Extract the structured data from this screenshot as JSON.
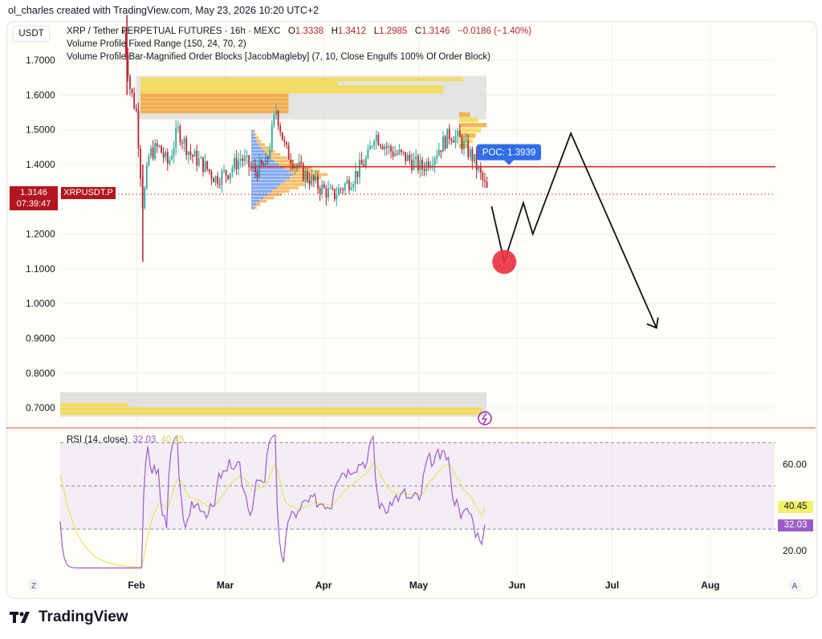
{
  "header": {
    "created_by": "ol_charles created with TradingView.com, May 23, 2026 10:20 UTC+2"
  },
  "unit": "USDT",
  "legend": {
    "symbol_line": "XRP / Tether PERPETUAL FUTURES · 16h · MEXC",
    "o_label": "O",
    "o_value": "1.3338",
    "h_label": "H",
    "h_value": "1.3412",
    "l_label": "L",
    "l_value": "1.2985",
    "c_label": "C",
    "c_value": "1.3146",
    "change": "−0.0186 (−1.40%)",
    "indicator1": "Volume Profile Fixed Range (150, 24, 70, 2)",
    "indicator2": "Volume Profile Bar-Magnified Order Blocks [JacobMagleby] (7, 10, Close Engulfs 100% Of Order Block)"
  },
  "last_price": {
    "price": "1.3146",
    "countdown": "07:39:47",
    "symbol": "XRPUSDT.P"
  },
  "poc_label": "POC: 1.3939",
  "rsi": {
    "title": "RSI (14, close)",
    "value": "32.03",
    "ma_value": "40.45",
    "ticks": [
      "60.00",
      "20.00"
    ]
  },
  "time_axis": {
    "ticks": [
      "Feb",
      "Mar",
      "Apr",
      "May",
      "Jun",
      "Jul",
      "Aug"
    ],
    "left_badge": "Z",
    "right_badge": "A"
  },
  "brand": "TradingView",
  "colors": {
    "up": "#26a69a",
    "down": "#b22833",
    "poc_line": "#d32f2f",
    "rsi_line": "#9c5cc7",
    "rsi_ma": "#e6e66b",
    "rsi_band": "#ebe3f4",
    "vp_orange": "#f4a93a",
    "vp_yellow": "#f5d94a",
    "vp_blue": "#5a8ff0",
    "ob_gray": "#d9d9d9",
    "marker_red": "#ec3342"
  },
  "chart_data": {
    "type": "candlestick",
    "timeframe": "16h",
    "y_axis_ticks": [
      1.7,
      1.6,
      1.5,
      1.4,
      1.3,
      1.2,
      1.1,
      1.0,
      0.9,
      0.8,
      0.7
    ],
    "ylim": [
      0.66,
      1.83
    ],
    "x_ticks": [
      "Feb",
      "Mar",
      "Apr",
      "May",
      "Jun",
      "Jul",
      "Aug"
    ],
    "close_path": [
      [
        "Jan 28",
        1.78
      ],
      [
        "Jan 30",
        1.62
      ],
      [
        "Feb 1",
        1.55
      ],
      [
        "Feb 3",
        1.28
      ],
      [
        "Feb 5",
        1.43
      ],
      [
        "Feb 8",
        1.45
      ],
      [
        "Feb 11",
        1.4
      ],
      [
        "Feb 14",
        1.5
      ],
      [
        "Feb 18",
        1.43
      ],
      [
        "Feb 22",
        1.4
      ],
      [
        "Feb 26",
        1.36
      ],
      [
        "Mar 2",
        1.38
      ],
      [
        "Mar 6",
        1.42
      ],
      [
        "Mar 10",
        1.38
      ],
      [
        "Mar 14",
        1.4
      ],
      [
        "Mar 17",
        1.56
      ],
      [
        "Mar 20",
        1.44
      ],
      [
        "Mar 25",
        1.38
      ],
      [
        "Mar 30",
        1.34
      ],
      [
        "Apr 4",
        1.31
      ],
      [
        "Apr 10",
        1.36
      ],
      [
        "Apr 15",
        1.42
      ],
      [
        "Apr 17",
        1.49
      ],
      [
        "Apr 22",
        1.44
      ],
      [
        "Apr 27",
        1.42
      ],
      [
        "May 2",
        1.39
      ],
      [
        "May 6",
        1.43
      ],
      [
        "May 11",
        1.49
      ],
      [
        "May 14",
        1.47
      ],
      [
        "May 18",
        1.42
      ],
      [
        "May 23",
        1.3146
      ]
    ],
    "poc": 1.3939,
    "volume_profile_main": {
      "range_top": 1.5,
      "range_bottom": 1.27
    },
    "order_blocks": [
      {
        "top": 1.655,
        "bottom": 1.53
      },
      {
        "top": 0.745,
        "bottom": 0.675
      }
    ],
    "projection_path": [
      [
        "May 24",
        1.28
      ],
      [
        "May 28",
        1.12
      ],
      [
        "Jun 3",
        1.29
      ],
      [
        "Jun 6",
        1.2
      ],
      [
        "Jun 18",
        1.49
      ],
      [
        "Jul 15",
        0.93
      ]
    ],
    "target_marker": {
      "date": "May 28",
      "price": 1.12
    },
    "rsi": {
      "period": 14,
      "source": "close",
      "last": 32.03,
      "ma_last": 40.45,
      "band": [
        30,
        70
      ]
    }
  }
}
